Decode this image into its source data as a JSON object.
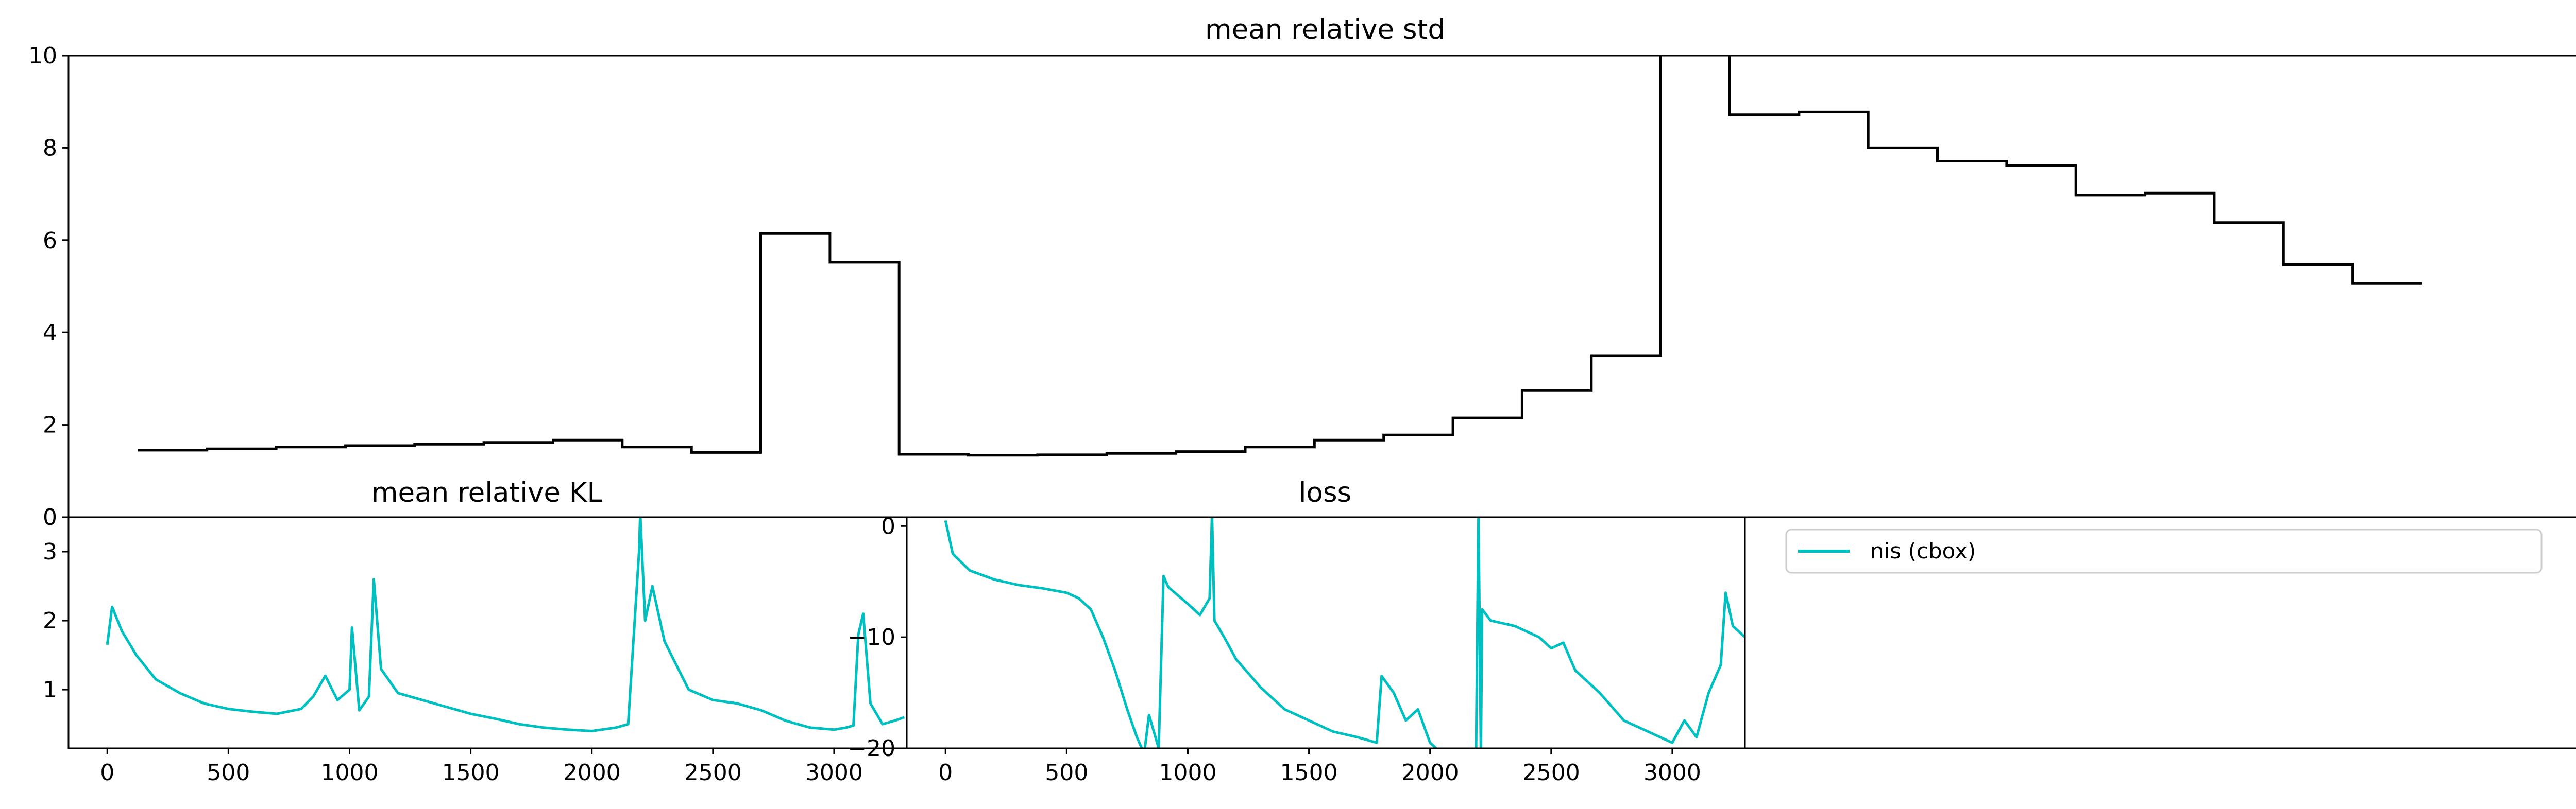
{
  "chart_data": [
    {
      "id": "std",
      "type": "line",
      "title": "mean relative std",
      "xlabel": "",
      "ylabel": "",
      "ylim": [
        0,
        10
      ],
      "yticks": [
        0,
        2,
        4,
        6,
        8,
        10
      ],
      "grid": false,
      "color": "#000000",
      "series": [
        {
          "step": true,
          "values": [
            [
              1,
              1.45
            ],
            [
              2,
              1.48
            ],
            [
              3,
              1.52
            ],
            [
              4,
              1.55
            ],
            [
              5,
              1.58
            ],
            [
              6,
              1.62
            ],
            [
              7,
              1.67
            ],
            [
              8,
              1.52
            ],
            [
              9,
              1.4
            ],
            [
              10,
              6.15
            ],
            [
              11,
              5.52
            ],
            [
              12,
              1.36
            ],
            [
              13,
              1.34
            ],
            [
              14,
              1.35
            ],
            [
              15,
              1.38
            ],
            [
              16,
              1.42
            ],
            [
              17,
              1.52
            ],
            [
              18,
              1.67
            ],
            [
              19,
              1.78
            ],
            [
              20,
              2.15
            ],
            [
              21,
              2.75
            ],
            [
              22,
              3.5
            ],
            [
              23,
              10.5
            ],
            [
              24,
              8.72
            ],
            [
              25,
              8.78
            ],
            [
              26,
              8.0
            ],
            [
              27,
              7.72
            ],
            [
              28,
              7.62
            ],
            [
              29,
              6.98
            ],
            [
              30,
              7.02
            ],
            [
              31,
              6.38
            ],
            [
              32,
              5.47
            ],
            [
              33,
              5.07
            ],
            [
              34,
              5.07
            ]
          ]
        }
      ]
    },
    {
      "id": "kl",
      "type": "line",
      "title": "mean relative KL",
      "xlabel": "",
      "ylabel": "",
      "xlim": [
        -160,
        3300
      ],
      "ylim": [
        0.15,
        3.5
      ],
      "xticks": [
        0,
        500,
        1000,
        1500,
        2000,
        2500,
        3000
      ],
      "yticks": [
        1,
        2,
        3
      ],
      "grid": false,
      "color": "#00bfc0",
      "series": [
        {
          "name": "nis (cbox)",
          "values": [
            [
              0,
              1.65
            ],
            [
              20,
              2.2
            ],
            [
              60,
              1.85
            ],
            [
              120,
              1.5
            ],
            [
              200,
              1.15
            ],
            [
              300,
              0.95
            ],
            [
              400,
              0.8
            ],
            [
              500,
              0.72
            ],
            [
              600,
              0.68
            ],
            [
              700,
              0.65
            ],
            [
              800,
              0.72
            ],
            [
              850,
              0.9
            ],
            [
              900,
              1.2
            ],
            [
              950,
              0.85
            ],
            [
              1000,
              1.0
            ],
            [
              1010,
              1.9
            ],
            [
              1040,
              0.7
            ],
            [
              1080,
              0.9
            ],
            [
              1100,
              2.6
            ],
            [
              1130,
              1.3
            ],
            [
              1200,
              0.95
            ],
            [
              1300,
              0.85
            ],
            [
              1400,
              0.75
            ],
            [
              1500,
              0.65
            ],
            [
              1600,
              0.58
            ],
            [
              1700,
              0.5
            ],
            [
              1800,
              0.45
            ],
            [
              1900,
              0.42
            ],
            [
              2000,
              0.4
            ],
            [
              2100,
              0.45
            ],
            [
              2150,
              0.5
            ],
            [
              2195,
              3.0
            ],
            [
              2200,
              3.55
            ],
            [
              2220,
              2.0
            ],
            [
              2250,
              2.5
            ],
            [
              2300,
              1.7
            ],
            [
              2400,
              1.0
            ],
            [
              2500,
              0.85
            ],
            [
              2600,
              0.8
            ],
            [
              2700,
              0.7
            ],
            [
              2800,
              0.55
            ],
            [
              2900,
              0.45
            ],
            [
              3000,
              0.42
            ],
            [
              3050,
              0.45
            ],
            [
              3080,
              0.48
            ],
            [
              3100,
              1.8
            ],
            [
              3120,
              2.1
            ],
            [
              3150,
              0.8
            ],
            [
              3200,
              0.5
            ],
            [
              3250,
              0.55
            ],
            [
              3290,
              0.6
            ]
          ]
        }
      ]
    },
    {
      "id": "loss",
      "type": "line",
      "title": "loss",
      "xlabel": "",
      "ylabel": "",
      "xlim": [
        -160,
        3300
      ],
      "ylim": [
        -20,
        0.8
      ],
      "xticks": [
        0,
        500,
        1000,
        1500,
        2000,
        2500,
        3000
      ],
      "yticks": [
        0,
        -10,
        -20
      ],
      "ytick_labels": [
        "0",
        "−10",
        "−20"
      ],
      "grid": false,
      "color": "#00bfc0",
      "series": [
        {
          "name": "nis (cbox)",
          "values": [
            [
              0,
              0.5
            ],
            [
              30,
              -2.5
            ],
            [
              100,
              -4.0
            ],
            [
              200,
              -4.8
            ],
            [
              300,
              -5.3
            ],
            [
              400,
              -5.6
            ],
            [
              500,
              -6.0
            ],
            [
              550,
              -6.5
            ],
            [
              600,
              -7.5
            ],
            [
              650,
              -10.0
            ],
            [
              700,
              -13.0
            ],
            [
              750,
              -16.5
            ],
            [
              790,
              -19.0
            ],
            [
              820,
              -20.5
            ],
            [
              840,
              -17.0
            ],
            [
              860,
              -18.5
            ],
            [
              880,
              -20.0
            ],
            [
              900,
              -4.5
            ],
            [
              920,
              -5.5
            ],
            [
              1000,
              -7.0
            ],
            [
              1050,
              -8.0
            ],
            [
              1090,
              -6.5
            ],
            [
              1100,
              1.0
            ],
            [
              1110,
              -8.5
            ],
            [
              1150,
              -10.0
            ],
            [
              1200,
              -12.0
            ],
            [
              1300,
              -14.5
            ],
            [
              1400,
              -16.5
            ],
            [
              1500,
              -17.5
            ],
            [
              1600,
              -18.5
            ],
            [
              1700,
              -19.0
            ],
            [
              1780,
              -19.5
            ],
            [
              1800,
              -13.5
            ],
            [
              1850,
              -15.0
            ],
            [
              1900,
              -17.5
            ],
            [
              1950,
              -16.5
            ],
            [
              2000,
              -19.5
            ],
            [
              2050,
              -20.5
            ],
            [
              2190,
              -20.5
            ],
            [
              2200,
              1.0
            ],
            [
              2210,
              -20.5
            ],
            [
              2215,
              -7.5
            ],
            [
              2250,
              -8.5
            ],
            [
              2350,
              -9.0
            ],
            [
              2450,
              -10.0
            ],
            [
              2500,
              -11.0
            ],
            [
              2550,
              -10.5
            ],
            [
              2600,
              -13.0
            ],
            [
              2700,
              -15.0
            ],
            [
              2800,
              -17.5
            ],
            [
              2900,
              -18.5
            ],
            [
              3000,
              -19.5
            ],
            [
              3050,
              -17.5
            ],
            [
              3100,
              -19.0
            ],
            [
              3150,
              -15.0
            ],
            [
              3200,
              -12.5
            ],
            [
              3220,
              -6.0
            ],
            [
              3250,
              -9.0
            ],
            [
              3300,
              -10.0
            ]
          ]
        }
      ]
    }
  ],
  "legend": {
    "entries": [
      {
        "label": "nis (cbox)",
        "color": "#00bfc0"
      }
    ]
  }
}
